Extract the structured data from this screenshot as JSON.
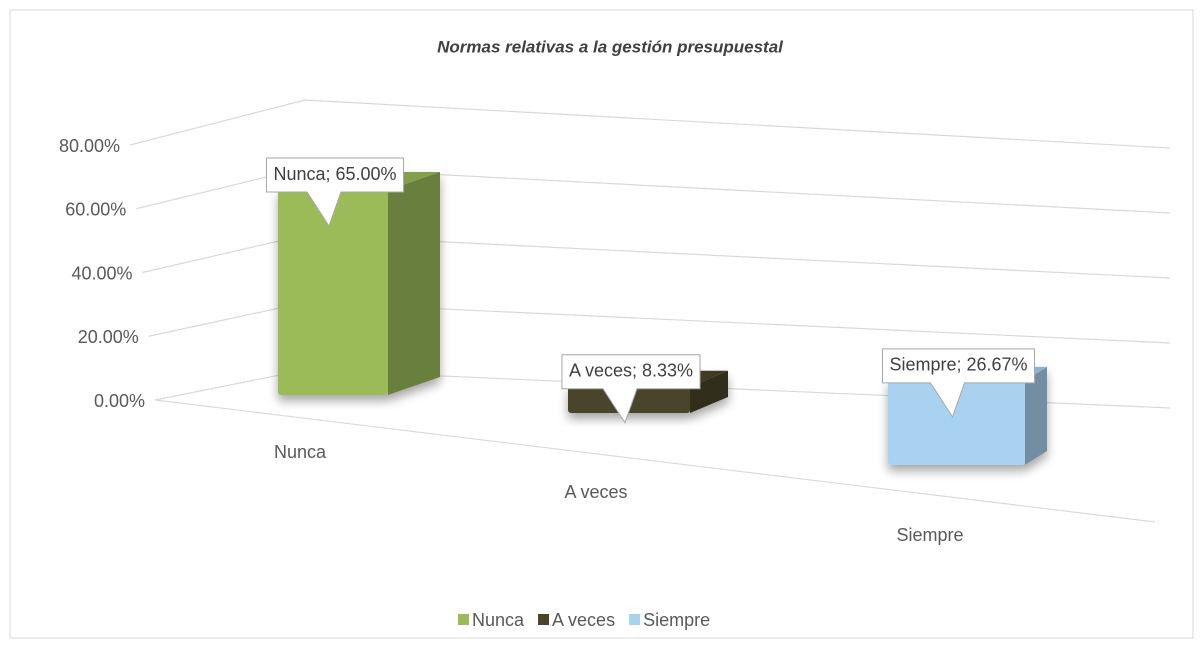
{
  "chart_data": {
    "type": "bar3d",
    "title": "Normas relativas a la gestión presupuestal",
    "categories": [
      "Nunca",
      "A veces",
      "Siempre"
    ],
    "values": [
      65,
      8.33,
      26.67
    ],
    "value_labels": [
      "Nunca; 65.00%",
      "A veces; 8.33%",
      "Siempre; 26.67%"
    ],
    "colors": [
      "#9bbb59",
      "#4a452a",
      "#a9d1f0"
    ],
    "ylim": [
      0,
      80
    ],
    "yticks": [
      {
        "value": 0,
        "label": "0.00%"
      },
      {
        "value": 20,
        "label": "20.00%"
      },
      {
        "value": 40,
        "label": "40.00%"
      },
      {
        "value": 60,
        "label": "60.00%"
      },
      {
        "value": 80,
        "label": "80.00%"
      }
    ],
    "grid": true,
    "legend": "bottom"
  }
}
